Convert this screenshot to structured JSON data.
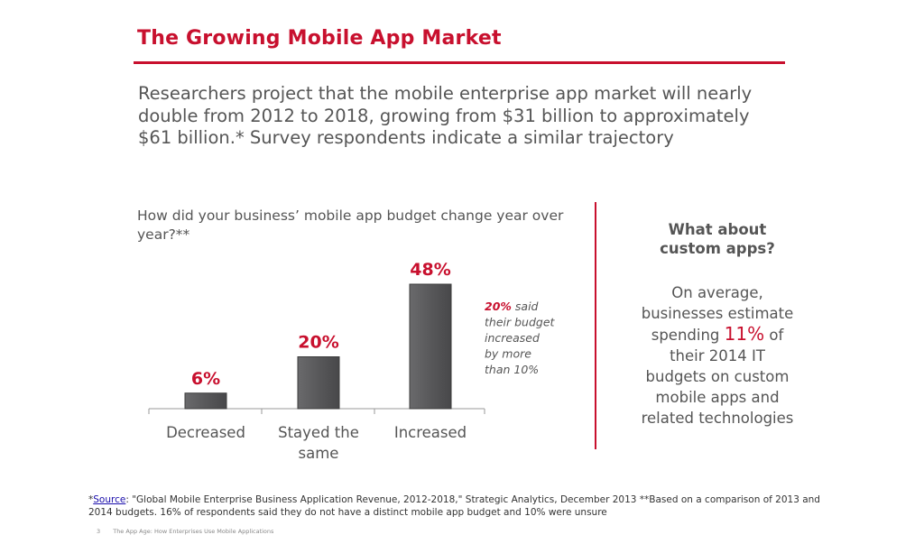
{
  "header": {
    "title": "The Growing Mobile App Market"
  },
  "lead_text": "Researchers project that the mobile enterprise app market will nearly double from 2012 to 2018, growing from $31 billion to approximately $61 billion.* Survey respondents indicate a similar trajectory",
  "chart_question": "How did your business’ mobile app budget change year over year?**",
  "chart_data": {
    "type": "bar",
    "title": "How did your business’ mobile app budget change year over year?**",
    "categories": [
      "Decreased",
      "Stayed the same",
      "Increased"
    ],
    "category_lines": [
      [
        "Decreased"
      ],
      [
        "Stayed the",
        "same"
      ],
      [
        "Increased"
      ]
    ],
    "values": [
      6,
      20,
      48
    ],
    "data_labels": [
      "6%",
      "20%",
      "48%"
    ],
    "unit": "%",
    "ylim": [
      0,
      48
    ],
    "grid": false,
    "legend": "none",
    "colors": {
      "bar": "#58585a",
      "bar_edge": "#3c3c3c",
      "labels": "#c8102e",
      "axis": "#999999"
    },
    "annotation": {
      "emphasis": "20%",
      "lines": [
        " said",
        "their budget",
        "increased",
        "by more",
        "than 10%"
      ]
    }
  },
  "sidebar": {
    "heading_line1": "What about",
    "heading_line2": "custom apps?",
    "body_line1": "On average,",
    "body_line2": "businesses estimate",
    "body_line3_pre": "spending ",
    "body_highlight": "11%",
    "body_line3_post": " of",
    "body_line4": "their 2014 IT",
    "body_line5": "budgets on custom",
    "body_line6": "mobile apps and",
    "body_line7": "related technologies"
  },
  "footnote": {
    "asterisk": "*",
    "source_link": "Source",
    "text": ":  \"Global Mobile Enterprise Business Application Revenue, 2012-2018,\" Strategic Analytics, December 2013  **Based on a comparison of 2013 and 2014 budgets. 16% of respondents said they do not have a distinct mobile app budget and 10% were unsure"
  },
  "footer": {
    "page_number": "3",
    "text": "The App Age: How Enterprises Use Mobile Applications"
  },
  "colors": {
    "accent": "#c8102e",
    "body_text": "#555555"
  }
}
